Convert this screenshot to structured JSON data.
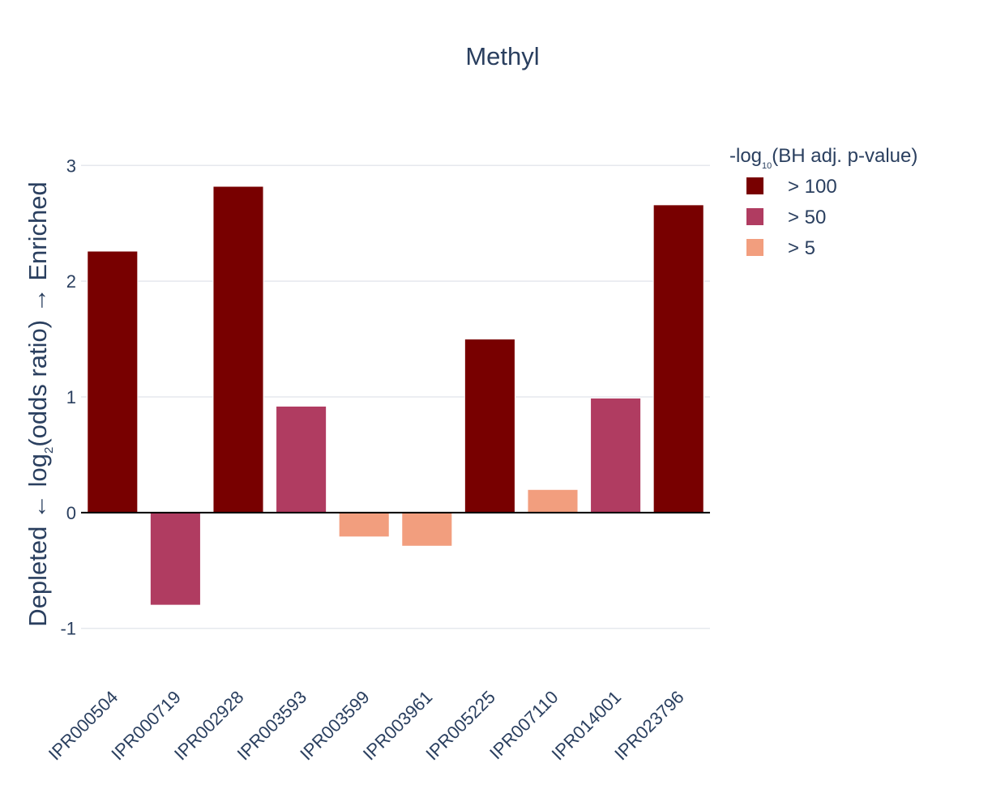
{
  "chart_data": {
    "type": "bar",
    "title": "Methyl",
    "ylabel_parts": {
      "left": "Depleted ← log",
      "sub": "2",
      "right": "(odds ratio) → Enriched"
    },
    "categories": [
      "IPR000504",
      "IPR000719",
      "IPR002928",
      "IPR003593",
      "IPR003599",
      "IPR003961",
      "IPR005225",
      "IPR007110",
      "IPR014001",
      "IPR023796"
    ],
    "values": [
      2.26,
      -0.8,
      2.82,
      0.92,
      -0.21,
      -0.29,
      1.5,
      0.2,
      0.99,
      2.66
    ],
    "groups": [
      "> 100",
      "> 50",
      "> 100",
      "> 50",
      "> 5",
      "> 5",
      "> 100",
      "> 5",
      "> 50",
      "> 100"
    ],
    "ylim": [
      -1.45,
      3.45
    ],
    "yticks": [
      -1,
      0,
      1,
      2,
      3
    ],
    "grid": true,
    "legend": {
      "placement": "top-right",
      "title_parts": {
        "left": "-log",
        "sub": "10",
        "right": "(BH adj. p-value)"
      },
      "entries": [
        {
          "label": "> 100",
          "color": "#780000"
        },
        {
          "label": "> 50",
          "color": "#b03c61"
        },
        {
          "label": "> 5",
          "color": "#f29e7e"
        }
      ]
    }
  }
}
